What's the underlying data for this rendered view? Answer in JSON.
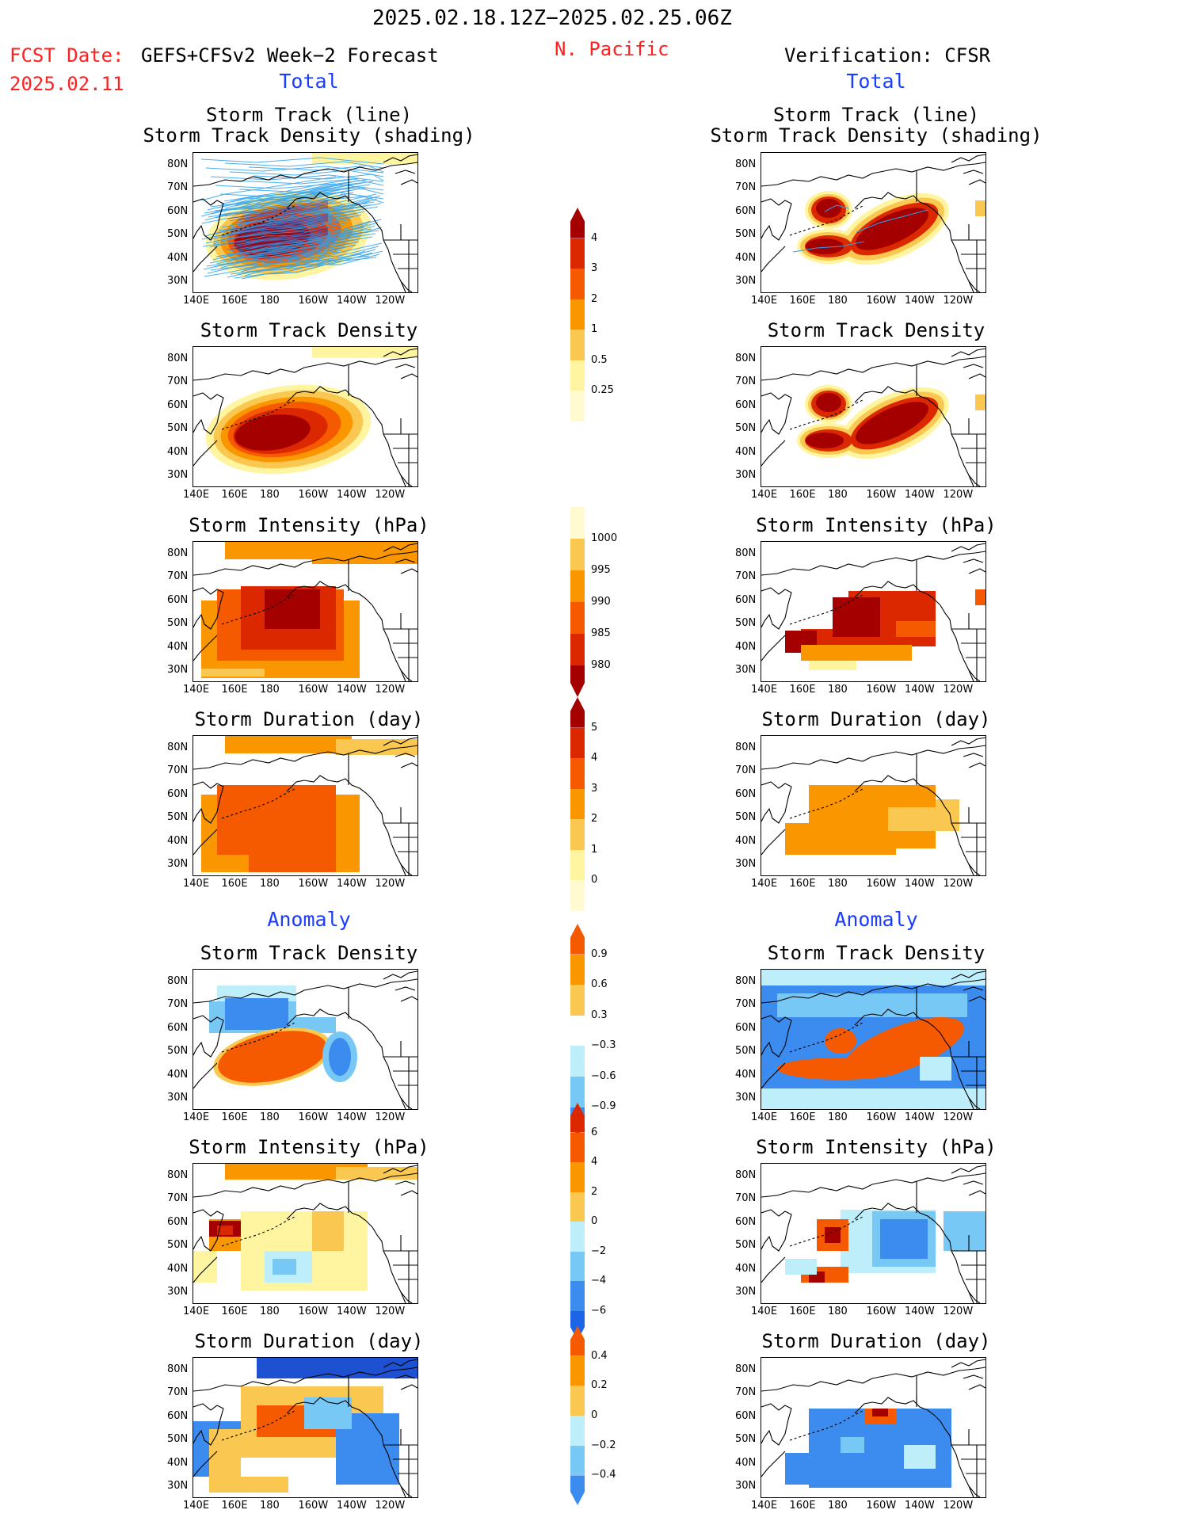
{
  "header": {
    "date_range": "2025.02.18.12Z−2025.02.25.06Z",
    "fcst_label": "FCST Date:",
    "fcst_model": "GEFS+CFSv2 Week−2 Forecast",
    "fcst_date": "2025.02.11",
    "region": "N. Pacific",
    "verification": "Verification: CFSR"
  },
  "sections": {
    "total": "Total",
    "anomaly": "Anomaly"
  },
  "panel_titles": {
    "track_line": "Storm Track (line)",
    "track_density_shading": "Storm Track Density (shading)",
    "track_density": "Storm Track Density",
    "intensity": "Storm Intensity (hPa)",
    "duration": "Storm Duration (day)"
  },
  "axes": {
    "lat_labels": [
      "80N",
      "70N",
      "60N",
      "50N",
      "40N",
      "30N"
    ],
    "lon_labels": [
      "140E",
      "160E",
      "180",
      "160W",
      "140W",
      "120W"
    ]
  },
  "colorbars": {
    "density": [
      "4",
      "3",
      "2",
      "1",
      "0.5",
      "0.25"
    ],
    "intensity": [
      "1000",
      "995",
      "990",
      "985",
      "980"
    ],
    "duration": [
      "5",
      "4",
      "3",
      "2",
      "1",
      "0"
    ],
    "anom_density": [
      "0.9",
      "0.6",
      "0.3",
      "−0.3",
      "−0.6",
      "−0.9"
    ],
    "anom_intensity": [
      "6",
      "4",
      "2",
      "0",
      "−2",
      "−4",
      "−6"
    ],
    "anom_duration": [
      "0.4",
      "0.2",
      "0",
      "−0.2",
      "−0.4"
    ]
  },
  "colors": {
    "dark_red": "#a50000",
    "red": "#dc2800",
    "orange_red": "#f55a00",
    "orange": "#fa9600",
    "light_orange": "#fac850",
    "pale_yellow": "#fff5a0",
    "light_blue": "#bdeefa",
    "sky_blue": "#78c8f5",
    "mid_blue": "#3c8cf0",
    "dark_blue": "#1e50d2",
    "track_blue": "#2aa0f0"
  }
}
